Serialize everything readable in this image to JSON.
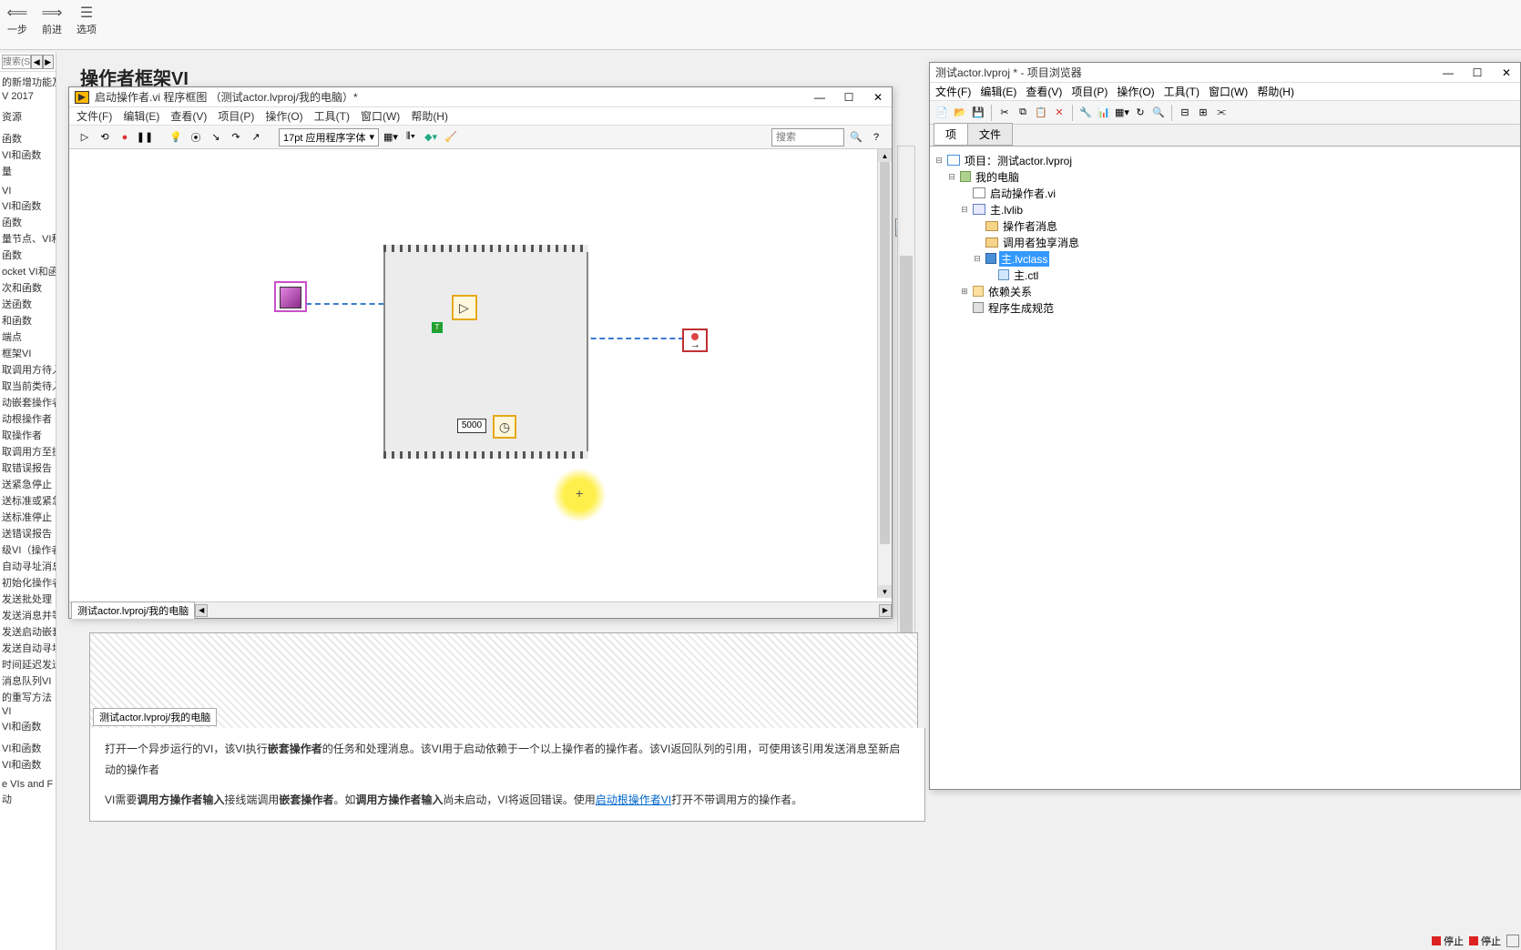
{
  "top_toolbar": {
    "back": "一步",
    "forward": "前进",
    "options": "选项"
  },
  "left_panel": {
    "search_placeholder": "搜索(S)",
    "items": [
      "的新增功能及",
      "V 2017",
      "",
      "资源",
      "",
      "函数",
      "VI和函数",
      "量",
      "",
      "VI",
      "VI和函数",
      "函数",
      "量节点、VI和",
      "函数",
      "ocket VI和函",
      "次和函数",
      "送函数",
      "和函数",
      "端点",
      "框架VI",
      "  取调用方待入",
      "  取当前类待入",
      "  动嵌套操作者",
      "  动根操作者",
      "  取操作者",
      "  取调用方至操",
      "  取错误报告",
      "  送紧急停止",
      "  送标准或紧急",
      "  送标准停止",
      "  送错误报告",
      "级VI（操作者",
      "  自动寻址消息",
      "  初始化操作者",
      "  发送批处理",
      "  发送消息并等",
      "  发送启动嵌套",
      "  发送自动寻址",
      "  时间延迟发送",
      "  消息队列VI",
      "的重写方法",
      "VI",
      "VI和函数",
      "",
      "VI和函数",
      "VI和函数",
      "",
      "e VIs and F",
      "动"
    ]
  },
  "main_title": "操作者框架VI",
  "vi_window": {
    "title": "启动操作者.vi 程序框图 （测试actor.lvproj/我的电脑）*",
    "menus": [
      "文件(F)",
      "编辑(E)",
      "查看(V)",
      "项目(P)",
      "操作(O)",
      "工具(T)",
      "窗口(W)",
      "帮助(H)"
    ],
    "font_label": "17pt 应用程序字体",
    "search_placeholder": "搜索",
    "footer_tab": "测试actor.lvproj/我的电脑",
    "wait_value": "5000",
    "true_const": "T"
  },
  "help_panel": {
    "footer_tab": "测试actor.lvproj/我的电脑",
    "line1_a": "打开一个异步运行的VI，该VI执行",
    "line1_b": "嵌套操作者",
    "line1_c": "的任务和处理消息。该VI用于启动依赖于一个以上操作者的操作者。该VI返回队列的引用，可使用该引用发送消息至新启动的操作者",
    "line2_a": "VI需要",
    "line2_b": "调用方操作者输入",
    "line2_c": "接线端调用",
    "line2_d": "嵌套操作者",
    "line2_e": "。如",
    "line2_f": "调用方操作者输入",
    "line2_g": "尚未启动，VI将返回错误。使用",
    "line2_link": "启动根操作者VI",
    "line2_h": "打开不带调用方的操作者。"
  },
  "proj_window": {
    "title": "测试actor.lvproj * - 项目浏览器",
    "menus": [
      "文件(F)",
      "编辑(E)",
      "查看(V)",
      "项目(P)",
      "操作(O)",
      "工具(T)",
      "窗口(W)",
      "帮助(H)"
    ],
    "tabs": [
      "项",
      "文件"
    ],
    "tree": {
      "root": "项目：测试actor.lvproj",
      "computer": "我的电脑",
      "launch_vi": "启动操作者.vi",
      "lib": "主.lvlib",
      "msg1": "操作者消息",
      "msg2": "调用者独享消息",
      "class": "主.lvclass",
      "ctl": "主.ctl",
      "deps": "依赖关系",
      "build": "程序生成规范"
    }
  },
  "status": {
    "stop1": "停止",
    "stop2": "停止"
  },
  "colors": {
    "selection": "#3399ff"
  }
}
